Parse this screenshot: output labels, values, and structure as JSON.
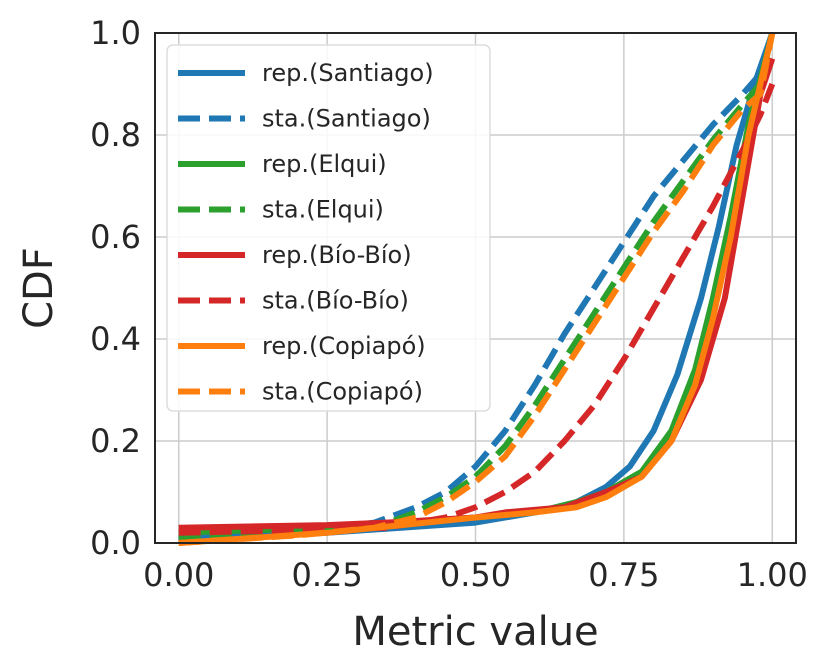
{
  "chart_data": {
    "type": "line",
    "xlabel": "Metric value",
    "ylabel": "CDF",
    "xlim": [
      -0.04,
      1.04
    ],
    "ylim": [
      0.0,
      1.0
    ],
    "xticks": [
      0.0,
      0.25,
      0.5,
      0.75,
      1.0
    ],
    "xtick_labels": [
      "0.00",
      "0.25",
      "0.50",
      "0.75",
      "1.00"
    ],
    "yticks": [
      0.0,
      0.2,
      0.4,
      0.6,
      0.8,
      1.0
    ],
    "ytick_labels": [
      "0.0",
      "0.2",
      "0.4",
      "0.6",
      "0.8",
      "1.0"
    ],
    "grid": true,
    "legend_position": "upper-left",
    "series": [
      {
        "name": "rep.(Santiago)",
        "color": "#1f77b4",
        "dash": "solid",
        "points": [
          [
            0.0,
            0.01
          ],
          [
            0.25,
            0.02
          ],
          [
            0.5,
            0.04
          ],
          [
            0.6,
            0.06
          ],
          [
            0.67,
            0.08
          ],
          [
            0.72,
            0.11
          ],
          [
            0.76,
            0.15
          ],
          [
            0.8,
            0.22
          ],
          [
            0.84,
            0.33
          ],
          [
            0.88,
            0.48
          ],
          [
            0.91,
            0.62
          ],
          [
            0.94,
            0.78
          ],
          [
            0.97,
            0.9
          ],
          [
            1.0,
            1.0
          ]
        ]
      },
      {
        "name": "sta.(Santiago)",
        "color": "#1f77b4",
        "dash": "dashed",
        "points": [
          [
            0.0,
            0.01
          ],
          [
            0.2,
            0.02
          ],
          [
            0.33,
            0.04
          ],
          [
            0.4,
            0.07
          ],
          [
            0.45,
            0.1
          ],
          [
            0.5,
            0.15
          ],
          [
            0.55,
            0.22
          ],
          [
            0.6,
            0.31
          ],
          [
            0.65,
            0.41
          ],
          [
            0.7,
            0.5
          ],
          [
            0.75,
            0.59
          ],
          [
            0.8,
            0.68
          ],
          [
            0.85,
            0.75
          ],
          [
            0.9,
            0.82
          ],
          [
            0.95,
            0.88
          ],
          [
            0.98,
            0.92
          ],
          [
            1.0,
            1.0
          ]
        ]
      },
      {
        "name": "rep.(Elqui)",
        "color": "#2ca02c",
        "dash": "solid",
        "points": [
          [
            0.0,
            0.02
          ],
          [
            0.25,
            0.03
          ],
          [
            0.5,
            0.05
          ],
          [
            0.6,
            0.06
          ],
          [
            0.67,
            0.08
          ],
          [
            0.72,
            0.1
          ],
          [
            0.78,
            0.14
          ],
          [
            0.83,
            0.22
          ],
          [
            0.87,
            0.34
          ],
          [
            0.9,
            0.48
          ],
          [
            0.93,
            0.64
          ],
          [
            0.96,
            0.82
          ],
          [
            1.0,
            1.0
          ]
        ]
      },
      {
        "name": "sta.(Elqui)",
        "color": "#2ca02c",
        "dash": "dashed",
        "points": [
          [
            0.0,
            0.01
          ],
          [
            0.2,
            0.02
          ],
          [
            0.33,
            0.03
          ],
          [
            0.4,
            0.06
          ],
          [
            0.45,
            0.09
          ],
          [
            0.5,
            0.13
          ],
          [
            0.55,
            0.19
          ],
          [
            0.6,
            0.27
          ],
          [
            0.65,
            0.36
          ],
          [
            0.7,
            0.45
          ],
          [
            0.75,
            0.54
          ],
          [
            0.8,
            0.63
          ],
          [
            0.85,
            0.71
          ],
          [
            0.9,
            0.79
          ],
          [
            0.95,
            0.86
          ],
          [
            0.98,
            0.9
          ],
          [
            1.0,
            1.0
          ]
        ]
      },
      {
        "name": "rep.(Bío-Bío)",
        "color": "#d62728",
        "dash": "solid",
        "points": [
          [
            0.0,
            0.03
          ],
          [
            0.25,
            0.035
          ],
          [
            0.35,
            0.04
          ],
          [
            0.5,
            0.05
          ],
          [
            0.55,
            0.06
          ],
          [
            0.65,
            0.07
          ],
          [
            0.72,
            0.1
          ],
          [
            0.78,
            0.13
          ],
          [
            0.83,
            0.2
          ],
          [
            0.88,
            0.32
          ],
          [
            0.92,
            0.48
          ],
          [
            0.95,
            0.68
          ],
          [
            0.98,
            0.88
          ],
          [
            1.0,
            0.95
          ]
        ]
      },
      {
        "name": "sta.(Bío-Bío)",
        "color": "#d62728",
        "dash": "dashed",
        "points": [
          [
            0.0,
            0.02
          ],
          [
            0.2,
            0.025
          ],
          [
            0.35,
            0.03
          ],
          [
            0.45,
            0.05
          ],
          [
            0.5,
            0.07
          ],
          [
            0.55,
            0.1
          ],
          [
            0.6,
            0.14
          ],
          [
            0.65,
            0.2
          ],
          [
            0.7,
            0.27
          ],
          [
            0.75,
            0.36
          ],
          [
            0.8,
            0.46
          ],
          [
            0.85,
            0.56
          ],
          [
            0.9,
            0.66
          ],
          [
            0.95,
            0.77
          ],
          [
            0.98,
            0.84
          ],
          [
            1.0,
            0.9
          ]
        ]
      },
      {
        "name": "rep.(Copiapó)",
        "color": "#ff7f0e",
        "dash": "solid",
        "points": [
          [
            0.0,
            0.0
          ],
          [
            0.25,
            0.02
          ],
          [
            0.5,
            0.05
          ],
          [
            0.6,
            0.06
          ],
          [
            0.67,
            0.07
          ],
          [
            0.72,
            0.09
          ],
          [
            0.78,
            0.13
          ],
          [
            0.83,
            0.2
          ],
          [
            0.87,
            0.31
          ],
          [
            0.9,
            0.44
          ],
          [
            0.93,
            0.6
          ],
          [
            0.96,
            0.8
          ],
          [
            0.99,
            0.95
          ],
          [
            1.0,
            1.0
          ]
        ]
      },
      {
        "name": "sta.(Copiapó)",
        "color": "#ff7f0e",
        "dash": "dashed",
        "points": [
          [
            0.0,
            0.0
          ],
          [
            0.2,
            0.015
          ],
          [
            0.33,
            0.03
          ],
          [
            0.4,
            0.05
          ],
          [
            0.45,
            0.08
          ],
          [
            0.5,
            0.12
          ],
          [
            0.55,
            0.17
          ],
          [
            0.6,
            0.25
          ],
          [
            0.65,
            0.34
          ],
          [
            0.7,
            0.43
          ],
          [
            0.75,
            0.52
          ],
          [
            0.8,
            0.61
          ],
          [
            0.85,
            0.69
          ],
          [
            0.9,
            0.78
          ],
          [
            0.95,
            0.85
          ],
          [
            0.98,
            0.88
          ],
          [
            1.0,
            1.0
          ]
        ]
      }
    ]
  }
}
